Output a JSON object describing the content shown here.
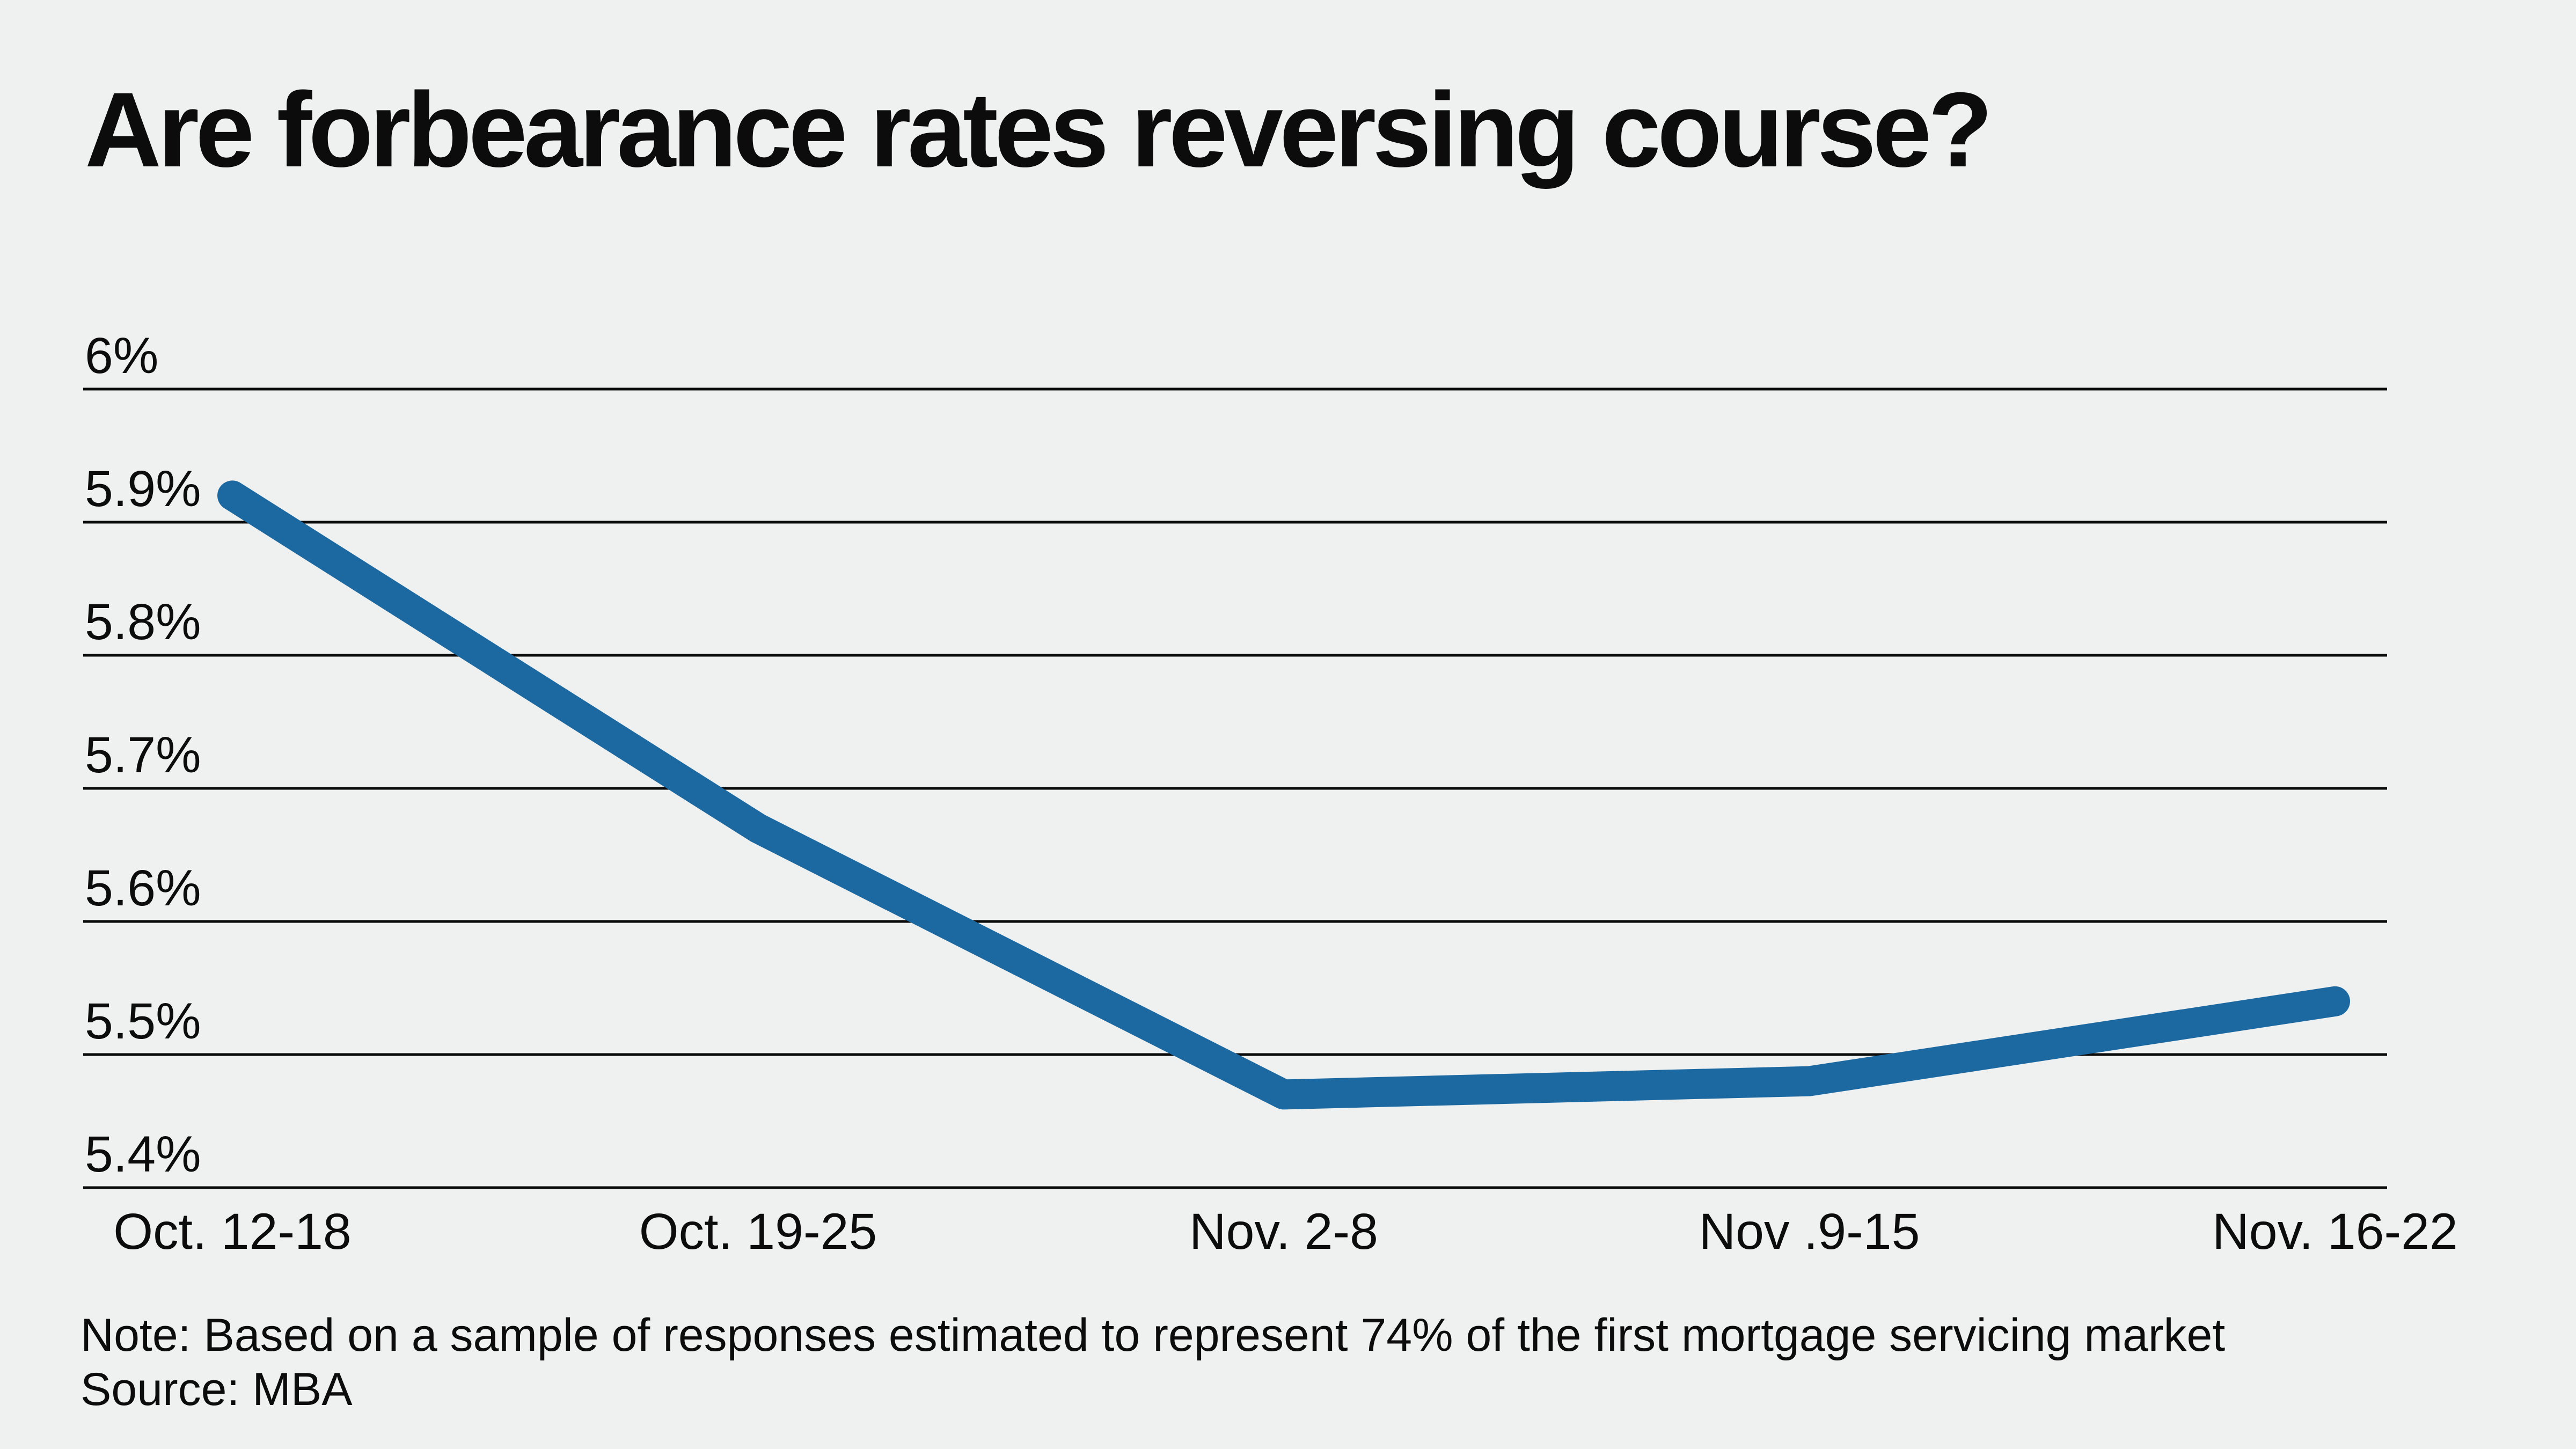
{
  "title": "Are forbearance rates reversing course?",
  "note": "Note: Based on a sample of responses estimated to represent 74% of the first mortgage servicing market",
  "source": "Source: MBA",
  "colors": {
    "background": "#eff1f0",
    "line": "#1c69a2",
    "grid": "#0b0b0b",
    "text": "#0c0c0c"
  },
  "chart_data": {
    "type": "line",
    "categories": [
      "Oct. 12-18",
      "Oct. 19-25",
      "Nov. 2-8",
      "Nov .9-15",
      "Nov. 16-22"
    ],
    "values": [
      5.92,
      5.67,
      5.47,
      5.48,
      5.54
    ],
    "unit": "percent",
    "title": "Are forbearance rates reversing course?",
    "xlabel": "",
    "ylabel": "",
    "yticks": [
      "6%",
      "5.9%",
      "5.8%",
      "5.7%",
      "5.6%",
      "5.5%",
      "5.4%"
    ],
    "ytick_values": [
      6.0,
      5.9,
      5.8,
      5.7,
      5.6,
      5.5,
      5.4
    ],
    "ylim": [
      5.4,
      6.0
    ],
    "grid": "horizontal",
    "legend": false
  }
}
